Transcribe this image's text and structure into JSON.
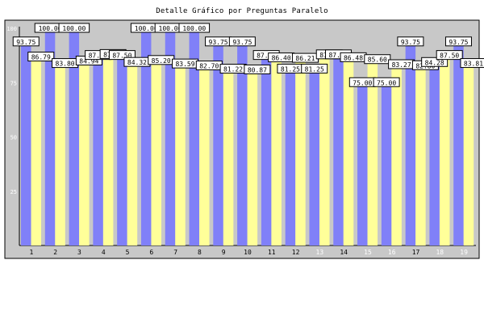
{
  "chart_data": {
    "type": "bar",
    "title": "Detalle Gráfico por Preguntas Paralelo",
    "xlabel": "",
    "ylabel": "",
    "ylim": [
      0,
      100
    ],
    "y_ticks": [
      25,
      50,
      75,
      100
    ],
    "grid": false,
    "legend": "none",
    "categories": [
      "1",
      "2",
      "3",
      "4",
      "5",
      "6",
      "7",
      "8",
      "9",
      "10",
      "11",
      "12",
      "13",
      "14",
      "15",
      "16",
      "17",
      "18",
      "19"
    ],
    "series": [
      {
        "color": "#8080f8",
        "values": [
          93.75,
          100.0,
          100.0,
          87.5,
          87.5,
          100.0,
          100.0,
          100.0,
          93.75,
          93.75,
          87.5,
          81.25,
          81.25,
          87.8,
          75.0,
          75.0,
          93.75,
          84.28,
          93.75
        ],
        "labels": [
          "93.75",
          "100.00",
          "100.00",
          "87.50",
          "87.50",
          "100.00",
          "100.00",
          "100.00",
          "93.75",
          "93.75",
          "87.50",
          "81.25",
          "81.25",
          "87.80",
          "75.00",
          "75.00",
          "93.75",
          "84.28",
          "93.75"
        ]
      },
      {
        "color": "#ffff99",
        "values": [
          86.79,
          83.8,
          84.94,
          87.96,
          84.32,
          85.2,
          83.59,
          82.7,
          81.22,
          80.87,
          86.4,
          86.21,
          87.8,
          86.48,
          85.6,
          83.27,
          82.8,
          87.5,
          83.81
        ],
        "labels": [
          "86.79",
          "83.80",
          "84.94",
          "87.96",
          "84.32",
          "85.20",
          "83.59",
          "82.70",
          "81.22",
          "80.87",
          "86.40",
          "86.21",
          "87.80",
          "86.48",
          "85.60",
          "83.27",
          "82.80",
          "87.50",
          "83.81"
        ]
      }
    ],
    "colors": {
      "plot_background": "#c8c8c8",
      "frame": "#000000"
    }
  }
}
